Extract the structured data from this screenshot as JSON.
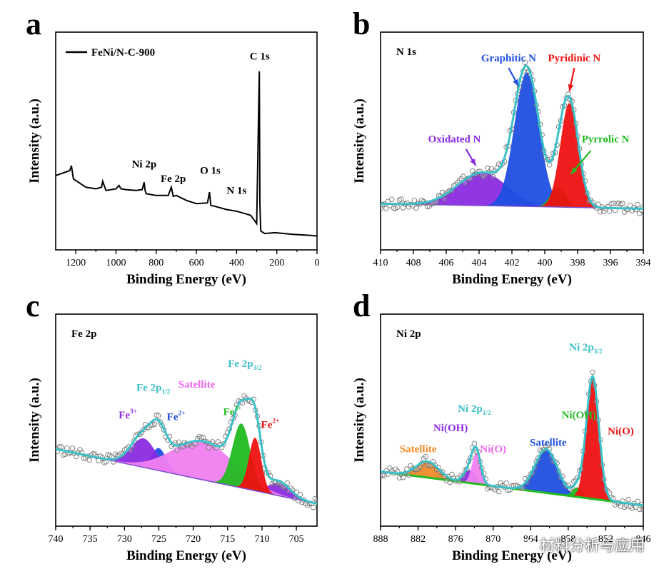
{
  "chart_data": [
    {
      "panel": "a",
      "type": "line",
      "title": "",
      "xlabel": "Binding Energy (eV)",
      "ylabel": "Intensity (a.u.)",
      "xlim": [
        1300,
        0
      ],
      "x_ticks": [
        1200,
        1000,
        800,
        600,
        400,
        200,
        0
      ],
      "legend": {
        "label": "FeNi/N-C-900",
        "placement": "top-left"
      },
      "series": [
        {
          "name": "FeNi/N-C-900",
          "color": "#000000",
          "x": [
            1300,
            1230,
            1222,
            1212,
            1150,
            1100,
            1072,
            1066,
            1050,
            1000,
            985,
            975,
            950,
            900,
            870,
            860,
            856,
            850,
            800,
            740,
            725,
            715,
            700,
            650,
            600,
            545,
            535,
            528,
            510,
            450,
            400,
            330,
            300,
            287,
            284,
            280,
            260,
            210,
            120,
            50,
            0
          ],
          "y": [
            0.37,
            0.4,
            0.43,
            0.35,
            0.3,
            0.29,
            0.3,
            0.335,
            0.28,
            0.29,
            0.31,
            0.29,
            0.285,
            0.28,
            0.285,
            0.33,
            0.285,
            0.26,
            0.25,
            0.25,
            0.3,
            0.245,
            0.25,
            0.22,
            0.2,
            0.205,
            0.27,
            0.19,
            0.185,
            0.165,
            0.155,
            0.13,
            0.08,
            1.0,
            0.2,
            0.035,
            0.02,
            0.025,
            0.015,
            0.01,
            0.005
          ]
        }
      ],
      "annotations": [
        {
          "text": "C 1s",
          "x": 285,
          "y": 1.07
        },
        {
          "text": "Ni 2p",
          "x": 860,
          "y": 0.42
        },
        {
          "text": "Fe 2p",
          "x": 715,
          "y": 0.33
        },
        {
          "text": "O 1s",
          "x": 531,
          "y": 0.38
        },
        {
          "text": "N 1s",
          "x": 400,
          "y": 0.26
        }
      ]
    },
    {
      "panel": "b",
      "type": "area",
      "title": "N 1s",
      "xlabel": "Binding Energy (eV)",
      "ylabel": "Intensity (a.u.)",
      "xlim": [
        410,
        394
      ],
      "x_ticks": [
        410,
        408,
        406,
        404,
        402,
        400,
        398,
        396,
        394
      ],
      "baseline": {
        "start": 0.2,
        "end": 0.17
      },
      "components": [
        {
          "name": "Oxidated N",
          "color": "#8a2be2",
          "center": 403.8,
          "height": 0.2,
          "width": 1.5
        },
        {
          "name": "Graphitic N",
          "color": "#1f4fe0",
          "center": 401.1,
          "height": 0.81,
          "width": 0.75
        },
        {
          "name": "Pyrrolic N",
          "color": "#22bb22",
          "center": 399.2,
          "height": 0.12,
          "width": 0.45
        },
        {
          "name": "Pyridinic N",
          "color": "#ee1111",
          "center": 398.5,
          "height": 0.63,
          "width": 0.55
        }
      ],
      "envelope_color": "#3cc0c8",
      "annotations": [
        {
          "text": "Graphitic N",
          "color": "#1f4fe0",
          "x": 402.2,
          "y": 1.06
        },
        {
          "text": "Pyridinic N",
          "color": "#ee1111",
          "x": 398.2,
          "y": 1.06
        },
        {
          "text": "Oxidated N",
          "color": "#8a2be2",
          "x": 405.5,
          "y": 0.57
        },
        {
          "text": "Pyrrolic N",
          "color": "#22bb22",
          "x": 396.3,
          "y": 0.57
        }
      ]
    },
    {
      "panel": "c",
      "type": "area",
      "title": "Fe 2p",
      "xlabel": "Binding Energy (eV)",
      "ylabel": "Intensity (a.u.)",
      "xlim": [
        740,
        702
      ],
      "x_ticks": [
        740,
        735,
        730,
        725,
        720,
        715,
        710,
        705
      ],
      "baseline": {
        "start": 0.4,
        "end": 0.06
      },
      "components": [
        {
          "name": "Fe2+ (2p3/2)",
          "color": "#8a2be2",
          "center": 707.5,
          "height": 0.08,
          "width": 1.6
        },
        {
          "name": "Fe2+ (2p1/2)",
          "color": "#1f4fe0",
          "center": 725.0,
          "height": 0.14,
          "width": 1.1
        },
        {
          "name": "Fe3+ (2p1/2)",
          "color": "#8a2be2",
          "center": 727.2,
          "height": 0.18,
          "width": 1.8
        },
        {
          "name": "Satellite",
          "color": "#f080f0",
          "center": 718.5,
          "height": 0.24,
          "width": 4.5
        },
        {
          "name": "Fe3+ (2p3/2)",
          "color": "#22bb22",
          "center": 713.0,
          "height": 0.4,
          "width": 1.3
        },
        {
          "name": "Fe2+ (2p3/2) main",
          "color": "#ee1111",
          "center": 711.0,
          "height": 0.33,
          "width": 0.9
        }
      ],
      "envelope_color": "#3cc0c8",
      "annotations": [
        {
          "text": "Fe 2p",
          "sub": "1/2",
          "color": "#3cc0c8",
          "x": 725.8,
          "y": 0.76
        },
        {
          "text": "Satellite",
          "color": "#ee66ee",
          "x": 719.5,
          "y": 0.78
        },
        {
          "text": "Fe 2p",
          "sub": "3/2",
          "color": "#3cc0c8",
          "x": 712.5,
          "y": 0.91
        },
        {
          "text": "Fe",
          "sup": "3+",
          "color": "#8a2be2",
          "x": 729.5,
          "y": 0.59
        },
        {
          "text": "Fe",
          "sup": "2+",
          "color": "#1f4fe0",
          "x": 722.5,
          "y": 0.58
        },
        {
          "text": "Fe",
          "sup": "3+",
          "color": "#22bb22",
          "x": 714.3,
          "y": 0.61
        },
        {
          "text": "Fe",
          "sup": "2+",
          "color": "#ee1111",
          "x": 708.8,
          "y": 0.53
        }
      ]
    },
    {
      "panel": "d",
      "type": "area",
      "title": "Ni 2p",
      "xlabel": "Binding Energy (eV)",
      "ylabel": "Intensity (a.u.)",
      "xlim": [
        888,
        846
      ],
      "x_ticks": [
        888,
        882,
        876,
        870,
        864,
        858,
        852,
        846
      ],
      "baseline": {
        "start": 0.26,
        "end": 0.05
      },
      "components": [
        {
          "name": "Satellite (2p1/2)",
          "color": "#f08a2a",
          "center": 880.5,
          "height": 0.1,
          "width": 1.8
        },
        {
          "name": "Ni(OH) (2p1/2)",
          "color": "#8a2be2",
          "center": 873.8,
          "height": 0.08,
          "width": 0.9
        },
        {
          "name": "Ni(O) (2p1/2)",
          "color": "#f080f0",
          "center": 872.7,
          "height": 0.19,
          "width": 0.7
        },
        {
          "name": "Satellite (2p3/2)",
          "color": "#1f4fe0",
          "center": 861.5,
          "height": 0.27,
          "width": 1.8
        },
        {
          "name": "Ni(OH) (2p3/2)",
          "color": "#22bb22",
          "center": 856.5,
          "height": 0.06,
          "width": 0.8
        },
        {
          "name": "Ni(O) (2p3/2)",
          "color": "#ee1111",
          "center": 854.1,
          "height": 0.76,
          "width": 1.0
        }
      ],
      "envelope_color": "#3cc0c8",
      "annotations": [
        {
          "text": "Ni 2p",
          "sub": "3/2",
          "color": "#3cc0c8",
          "x": 855.2,
          "y": 1.01
        },
        {
          "text": "Ni 2p",
          "sub": "1/2",
          "color": "#3cc0c8",
          "x": 873.0,
          "y": 0.63
        },
        {
          "text": "Ni(OH)",
          "color": "#8a2be2",
          "x": 876.8,
          "y": 0.51
        },
        {
          "text": "Ni(O)",
          "color": "#ee66ee",
          "x": 870.0,
          "y": 0.38
        },
        {
          "text": "Satellite",
          "color": "#f08a2a",
          "x": 882.0,
          "y": 0.38
        },
        {
          "text": "Satellite",
          "color": "#1f4fe0",
          "x": 861.2,
          "y": 0.42
        },
        {
          "text": "Ni(OH)",
          "color": "#22bb22",
          "x": 856.3,
          "y": 0.59
        },
        {
          "text": "Ni(O)",
          "color": "#ee1111",
          "x": 849.6,
          "y": 0.49
        }
      ]
    }
  ],
  "panel_letters": [
    "a",
    "b",
    "c",
    "d"
  ],
  "watermark": {
    "text": "材料分析与应用",
    "icon": "wechat-icon"
  }
}
